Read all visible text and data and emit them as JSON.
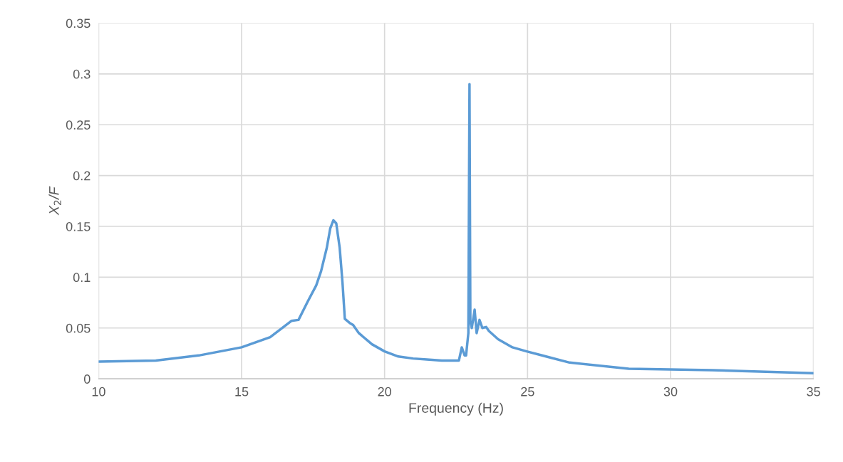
{
  "chart_data": {
    "type": "line",
    "xlabel": "Frequency (Hz)",
    "ylabel": "X$_{2}$/F",
    "xlim": [
      10,
      35
    ],
    "xticks": [
      10,
      15,
      20,
      25,
      30,
      35
    ],
    "ylim": [
      0,
      0.35
    ],
    "yticks": [
      0,
      0.05,
      0.1,
      0.15,
      0.2,
      0.25,
      0.3,
      0.35
    ],
    "grid": true,
    "line_style": "solid",
    "series": [
      {
        "color": "#5b9bd5",
        "x": [
          10,
          12,
          13.5,
          15,
          16,
          16.74,
          16.99,
          17.31,
          17.61,
          17.78,
          17.98,
          18.1,
          18.21,
          18.31,
          18.43,
          18.53,
          18.61,
          18.78,
          18.9,
          19.1,
          19.56,
          20,
          20.48,
          21,
          21.48,
          22,
          22.6,
          22.7,
          22.8,
          22.85,
          22.93,
          22.97,
          23.0,
          23.05,
          23.15,
          23.22,
          23.32,
          23.42,
          23.55,
          23.65,
          23.97,
          24.47,
          24.97,
          26.47,
          28.54,
          31.46,
          35
        ],
        "values": [
          0.017,
          0.018,
          0.023,
          0.031,
          0.041,
          0.057,
          0.058,
          0.076,
          0.092,
          0.106,
          0.129,
          0.148,
          0.156,
          0.153,
          0.129,
          0.094,
          0.059,
          0.055,
          0.053,
          0.045,
          0.034,
          0.027,
          0.022,
          0.02,
          0.019,
          0.018,
          0.018,
          0.031,
          0.023,
          0.023,
          0.045,
          0.29,
          0.057,
          0.05,
          0.068,
          0.045,
          0.058,
          0.05,
          0.051,
          0.047,
          0.039,
          0.031,
          0.027,
          0.016,
          0.01,
          0.0085,
          0.0056
        ]
      }
    ]
  }
}
